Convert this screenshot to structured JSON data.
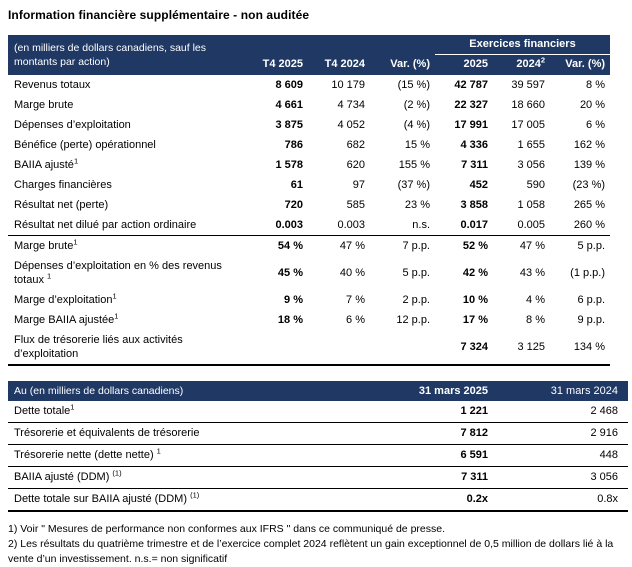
{
  "title": "Information financière supplémentaire - non auditée",
  "colors": {
    "header_bg": "#1f3864",
    "header_text": "#ffffff",
    "body_text": "#000000"
  },
  "table1": {
    "unit_label": "(en milliers de dollars canadiens, sauf les montants par action)",
    "fy_group_label": "Exercices financiers",
    "columns": [
      "T4 2025",
      "T4 2024",
      "Var. (%)",
      "2025",
      "2024",
      "Var. (%)"
    ],
    "fy2024_sup": "2",
    "rows": [
      {
        "label": "Revenus totaux",
        "sup": "",
        "values": [
          "8 609",
          "10 179",
          "(15 %)",
          "42 787",
          "39 597",
          "8 %"
        ]
      },
      {
        "label": "Marge brute",
        "sup": "",
        "values": [
          "4 661",
          "4 734",
          "(2 %)",
          "22 327",
          "18 660",
          "20 %"
        ]
      },
      {
        "label": "Dépenses d’exploitation",
        "sup": "",
        "values": [
          "3 875",
          "4 052",
          "(4 %)",
          "17 991",
          "17 005",
          "6 %"
        ]
      },
      {
        "label": "Bénéfice (perte) opérationnel",
        "sup": "",
        "values": [
          "786",
          "682",
          "15 %",
          "4 336",
          "1 655",
          "162 %"
        ]
      },
      {
        "label": "BAIIA ajusté",
        "sup": "1",
        "values": [
          "1 578",
          "620",
          "155 %",
          "7 311",
          "3 056",
          "139 %"
        ]
      },
      {
        "label": "Charges financières",
        "sup": "",
        "values": [
          "61",
          "97",
          "(37 %)",
          "452",
          "590",
          "(23 %)"
        ]
      },
      {
        "label": "Résultat net (perte)",
        "sup": "",
        "values": [
          "720",
          "585",
          "23 %",
          "3 858",
          "1 058",
          "265 %"
        ]
      },
      {
        "label": "Résultat net dilué par action ordinaire",
        "sup": "",
        "values": [
          "0.003",
          "0.003",
          "n.s.",
          "0.017",
          "0.005",
          "260 %"
        ],
        "divider_below": true
      },
      {
        "label": "Marge brute",
        "sup": "1",
        "values": [
          "54 %",
          "47 %",
          "7 p.p.",
          "52 %",
          "47 %",
          "5 p.p."
        ]
      },
      {
        "label": "Dépenses d’exploitation en % des revenus totaux ",
        "sup": "1",
        "values": [
          "45 %",
          "40 %",
          "5 p.p.",
          "42 %",
          "43 %",
          "(1 p.p.)"
        ]
      },
      {
        "label": "Marge d’exploitation",
        "sup": "1",
        "values": [
          "9 %",
          "7 %",
          "2 p.p.",
          "10 %",
          "4 %",
          "6 p.p."
        ]
      },
      {
        "label": "Marge BAIIA ajustée",
        "sup": "1",
        "values": [
          "18 %",
          "6 %",
          "12 p.p.",
          "17 %",
          "8 %",
          "9 p.p."
        ]
      },
      {
        "label": "Flux de trésorerie liés aux activités d’exploitation",
        "sup": "",
        "values": [
          "",
          "",
          "",
          "7 324",
          "3 125",
          "134 %"
        ],
        "bottom": true
      }
    ],
    "bold_value_columns": [
      0,
      3
    ]
  },
  "table2": {
    "header_label": "Au (en milliers de dollars canadiens)",
    "columns": [
      "31 mars 2025",
      "31 mars 2024"
    ],
    "rows": [
      {
        "label": "Dette totale",
        "sup": "1",
        "values": [
          "1 221",
          "2 468"
        ]
      },
      {
        "label": "Trésorerie et équivalents de trésorerie",
        "sup": "",
        "values": [
          "7 812",
          "2 916"
        ]
      },
      {
        "label": "Trésorerie nette (dette nette) ",
        "sup": "1",
        "values": [
          "6 591",
          "448"
        ]
      },
      {
        "label": "BAIIA ajusté (DDM) ",
        "sup": "(1)",
        "values": [
          "7 311",
          "3 056"
        ]
      },
      {
        "label": "Dette totale sur BAIIA ajusté (DDM) ",
        "sup": "(1)",
        "values": [
          "0.2x",
          "0.8x"
        ],
        "bottom": true
      }
    ],
    "bold_value_columns": [
      0
    ]
  },
  "footnotes": [
    "1) Voir \" Mesures de performance non conformes aux IFRS \" dans ce communiqué de presse.",
    "2) Les résultats du quatrième trimestre et de l’exercice complet 2024 reflètent un gain exceptionnel de 0,5 million de dollars lié à la vente d’un investissement. n.s.= non significatif"
  ]
}
